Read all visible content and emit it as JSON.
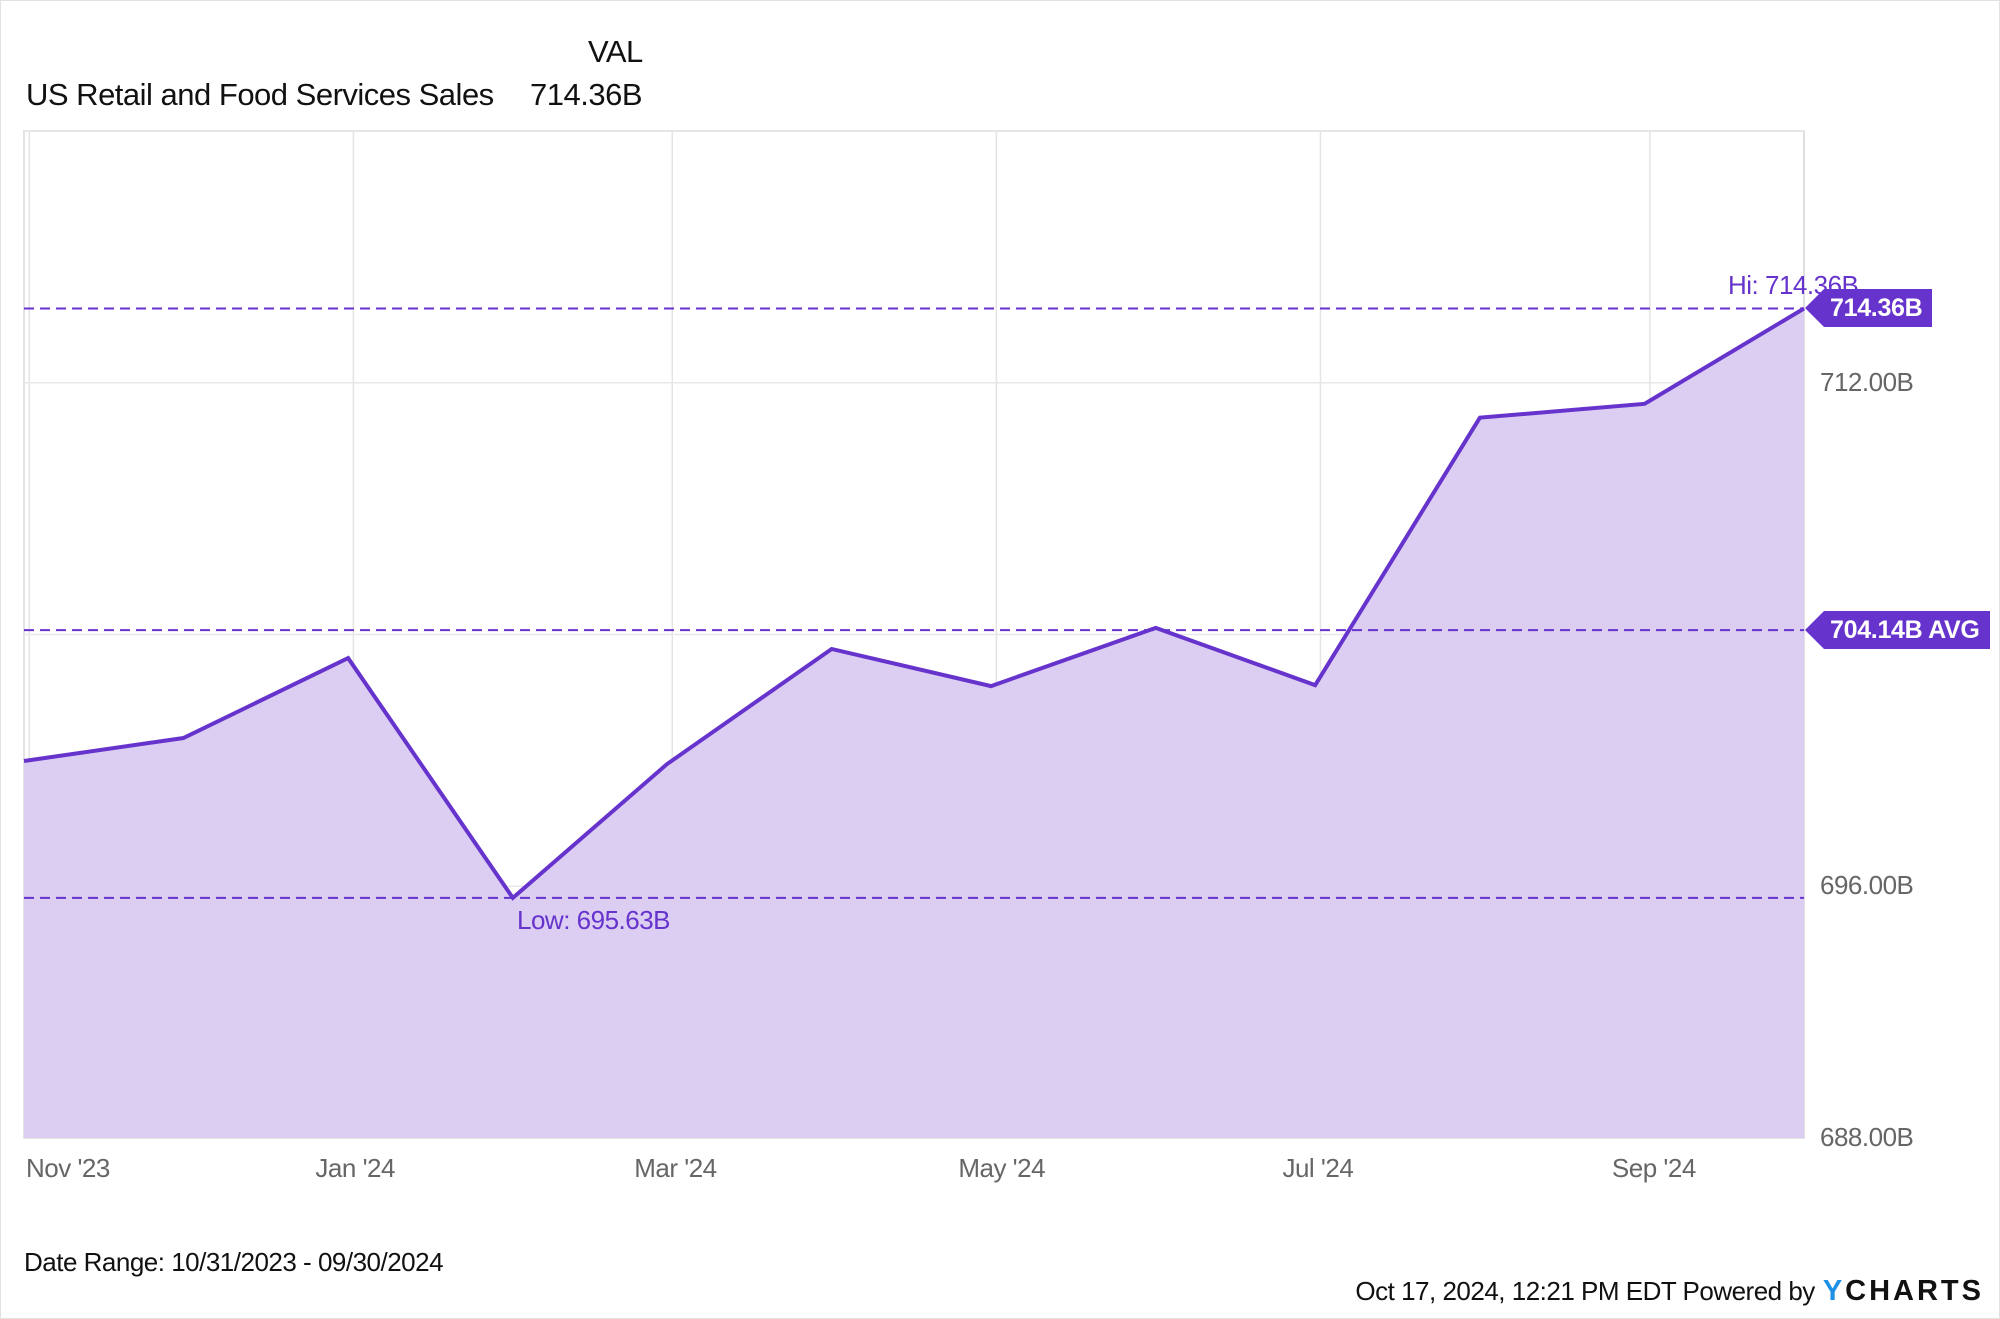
{
  "header": {
    "column_label": "VAL",
    "series_name": "US Retail and Food Services Sales",
    "series_value": "714.36B"
  },
  "annotations": {
    "hi_label": "Hi: 714.36B",
    "low_label": "Low: 695.63B",
    "last_badge": "714.36B",
    "avg_badge": "704.14B AVG"
  },
  "axis": {
    "y_ticks": [
      "712.00B",
      "696.00B",
      "688.00B"
    ],
    "x_ticks": [
      "Nov '23",
      "Jan '24",
      "Mar '24",
      "May '24",
      "Jul '24",
      "Sep '24"
    ]
  },
  "footer": {
    "date_range": "Date Range: 10/31/2023 - 09/30/2024",
    "timestamp": "Oct 17, 2024, 12:21 PM EDT Powered by",
    "brand_y": "Y",
    "brand_rest": "CHARTS"
  },
  "colors": {
    "line": "#6633cc",
    "fill": "#dacbf2",
    "badge": "#6633cc",
    "brand_accent": "#1e90e6"
  },
  "chart_data": {
    "type": "area",
    "title": "US Retail and Food Services Sales",
    "xlabel": "",
    "ylabel": "",
    "x": [
      "2023-10-31",
      "2023-11-30",
      "2023-12-31",
      "2024-01-31",
      "2024-02-29",
      "2024-03-31",
      "2024-04-30",
      "2024-05-31",
      "2024-06-30",
      "2024-07-31",
      "2024-08-31",
      "2024-09-30"
    ],
    "series": [
      {
        "name": "US Retail and Food Services Sales (B)",
        "values": [
          699.98,
          700.71,
          703.25,
          695.63,
          699.88,
          703.54,
          702.36,
          704.21,
          702.39,
          710.89,
          711.33,
          714.36
        ]
      }
    ],
    "ylim": [
      688,
      720
    ],
    "y_ticks": [
      688,
      696,
      704,
      712,
      720
    ],
    "x_tick_labels": [
      "Nov '23",
      "Jan '24",
      "Mar '24",
      "May '24",
      "Jul '24",
      "Sep '24"
    ],
    "reference_lines": [
      {
        "label": "Hi",
        "value": 714.36
      },
      {
        "label": "AVG",
        "value": 704.14
      },
      {
        "label": "Low",
        "value": 695.63
      }
    ],
    "grid": true,
    "legend_position": "top-left",
    "date_range": "10/31/2023 - 09/30/2024"
  }
}
